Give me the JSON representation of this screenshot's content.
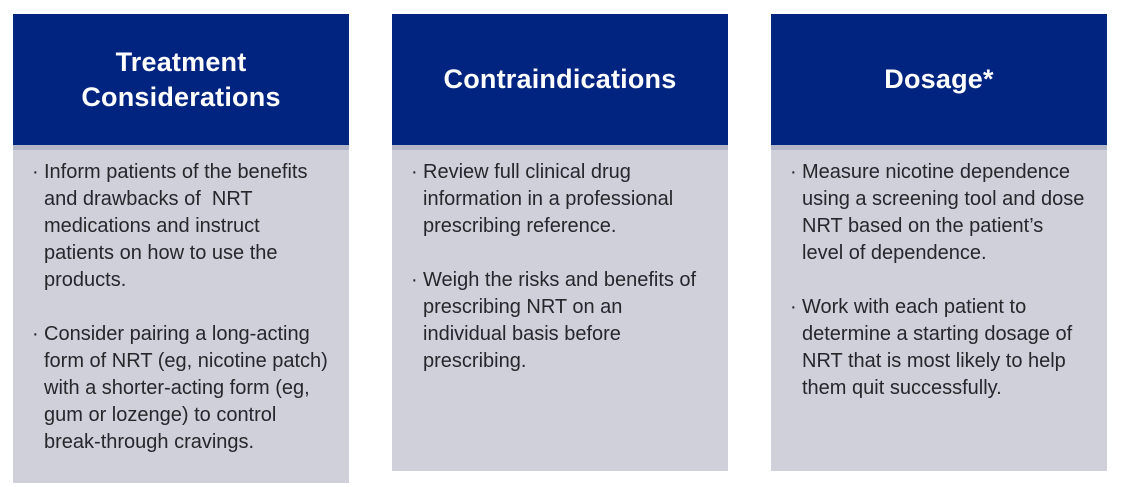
{
  "bullet_glyph": "·",
  "colors": {
    "header_background": "#012481",
    "header_text": "#ffffff",
    "body_background": "#d0d0db",
    "divider_band": "#b2b6c8",
    "body_text": "#26262b",
    "page_background": "#ffffff"
  },
  "cards": [
    {
      "title": "Treatment Considerations",
      "bullets": [
        "Inform patients of the benefits and drawbacks of  NRT medications and instruct patients on how to use the products.",
        "Consider pairing a long-acting form of NRT (eg, nicotine patch) with a shorter-acting form (eg, gum or lozenge) to control break-through cravings."
      ]
    },
    {
      "title": "Contraindications",
      "bullets": [
        "Review full clinical drug information in a professional prescribing reference.",
        "Weigh the risks and benefits of prescribing NRT on an individual basis before prescribing."
      ]
    },
    {
      "title": "Dosage*",
      "bullets": [
        "Measure nicotine dependence using a screening tool and dose NRT based on the patient’s level of dependence.",
        "Work with each patient to determine a starting dosage of NRT that is most likely to help them quit successfully."
      ]
    }
  ]
}
